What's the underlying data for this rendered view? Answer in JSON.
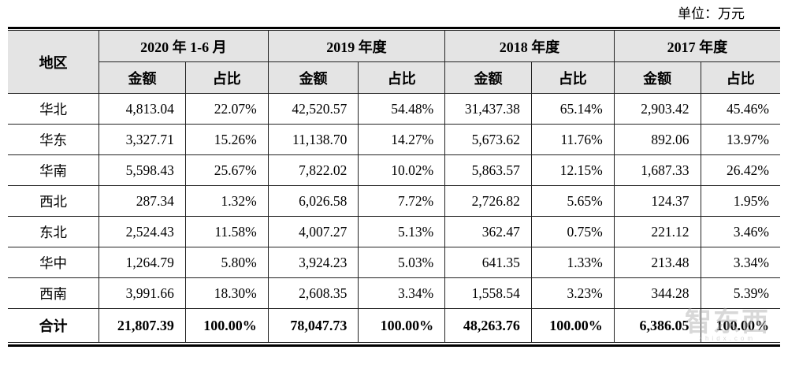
{
  "unit_label": "单位：万元",
  "table": {
    "region_header": "地区",
    "period_headers": [
      "2020 年 1-6 月",
      "2019 年度",
      "2018 年度",
      "2017 年度"
    ],
    "sub_headers": [
      "金额",
      "占比"
    ],
    "rows": [
      {
        "region": "华北",
        "values": [
          "4,813.04",
          "22.07%",
          "42,520.57",
          "54.48%",
          "31,437.38",
          "65.14%",
          "2,903.42",
          "45.46%"
        ]
      },
      {
        "region": "华东",
        "values": [
          "3,327.71",
          "15.26%",
          "11,138.70",
          "14.27%",
          "5,673.62",
          "11.76%",
          "892.06",
          "13.97%"
        ]
      },
      {
        "region": "华南",
        "values": [
          "5,598.43",
          "25.67%",
          "7,822.02",
          "10.02%",
          "5,863.57",
          "12.15%",
          "1,687.33",
          "26.42%"
        ]
      },
      {
        "region": "西北",
        "values": [
          "287.34",
          "1.32%",
          "6,026.58",
          "7.72%",
          "2,726.82",
          "5.65%",
          "124.37",
          "1.95%"
        ]
      },
      {
        "region": "东北",
        "values": [
          "2,524.43",
          "11.58%",
          "4,007.27",
          "5.13%",
          "362.47",
          "0.75%",
          "221.12",
          "3.46%"
        ]
      },
      {
        "region": "华中",
        "values": [
          "1,264.79",
          "5.80%",
          "3,924.23",
          "5.03%",
          "641.35",
          "1.33%",
          "213.48",
          "3.34%"
        ]
      },
      {
        "region": "西南",
        "values": [
          "3,991.66",
          "18.30%",
          "2,608.35",
          "3.34%",
          "1,558.54",
          "3.23%",
          "344.28",
          "5.39%"
        ]
      }
    ],
    "total_row": {
      "region": "合计",
      "values": [
        "21,807.39",
        "100.00%",
        "78,047.73",
        "100.00%",
        "48,263.76",
        "100.00%",
        "6,386.05",
        "100.00%"
      ]
    }
  },
  "watermark": {
    "logo": "智东西",
    "site": "zhidx.com"
  },
  "colors": {
    "header_bg": "#e4e4e4",
    "border": "#222222",
    "text": "#000000",
    "watermark": "#a9a9a9"
  }
}
